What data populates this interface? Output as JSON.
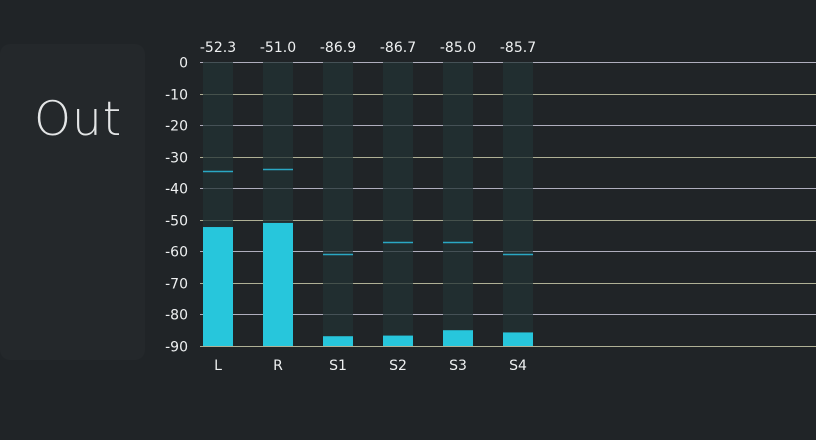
{
  "panel": {
    "title": "Out"
  },
  "meter": {
    "scale": {
      "min": -90,
      "max": 0,
      "step": 10
    },
    "tick_labels": [
      "0",
      "-10",
      "-20",
      "-30",
      "-40",
      "-50",
      "-60",
      "-70",
      "-80",
      "-90"
    ],
    "colors": {
      "bar": "#27c6dc",
      "track": "#223234",
      "hold": "#2aa8c4",
      "grid_warm": "#c9c9a9",
      "grid_cool": "#c9c7d8",
      "label": "#eef0f1"
    },
    "channels": [
      {
        "name": "L",
        "level_text": "-52.3",
        "level": -52.3,
        "hold": -34.5
      },
      {
        "name": "R",
        "level_text": "-51.0",
        "level": -51.0,
        "hold": -34.0
      },
      {
        "name": "S1",
        "level_text": "-86.9",
        "level": -86.9,
        "hold": -61.0
      },
      {
        "name": "S2",
        "level_text": "-86.7",
        "level": -86.7,
        "hold": -57.0
      },
      {
        "name": "S3",
        "level_text": "-85.0",
        "level": -85.0,
        "hold": -57.0
      },
      {
        "name": "S4",
        "level_text": "-85.7",
        "level": -85.7,
        "hold": -61.0
      }
    ]
  }
}
